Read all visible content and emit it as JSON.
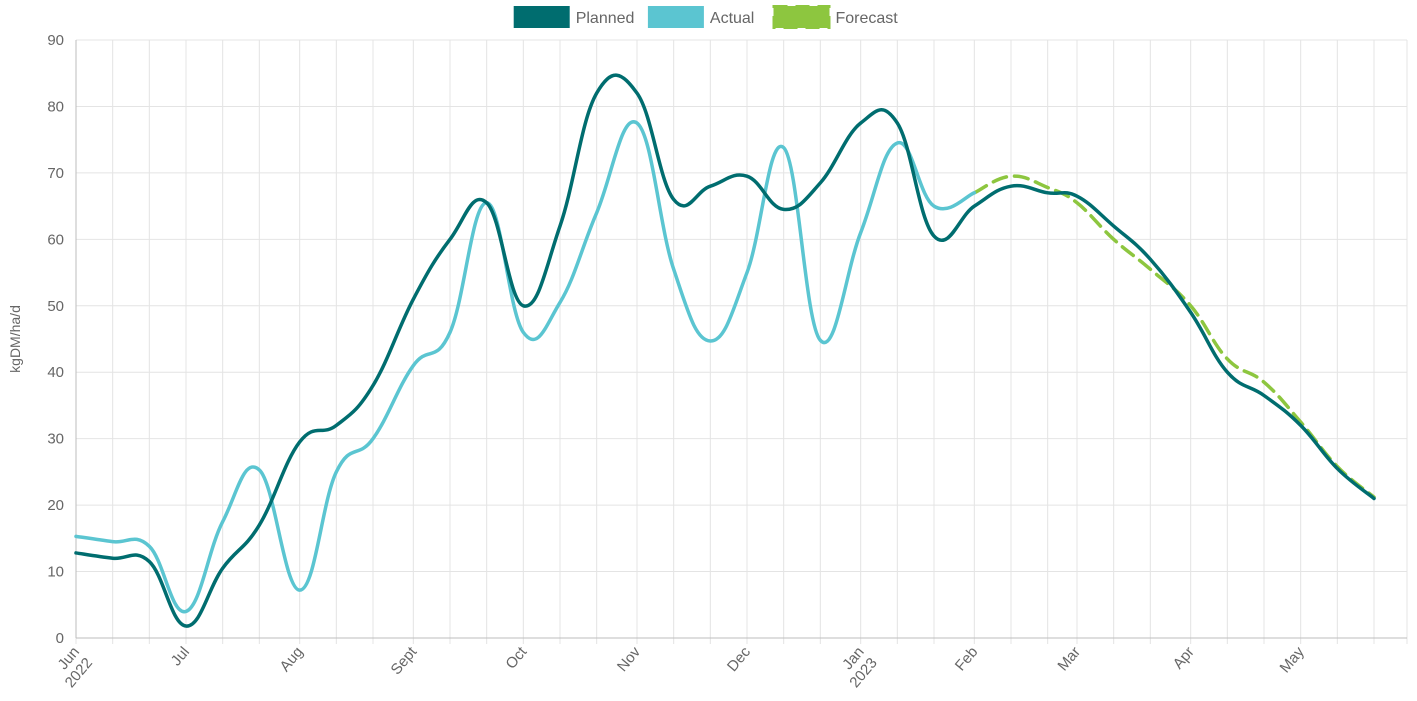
{
  "chart_data": {
    "type": "line",
    "ylabel": "kgDM/ha/d",
    "ylim": [
      0,
      90
    ],
    "yticks": [
      0,
      10,
      20,
      30,
      40,
      50,
      60,
      70,
      80,
      90
    ],
    "xlim": [
      "2022-06-01",
      "2023-05-30"
    ],
    "x_ticks": [
      {
        "date": "2022-06-01",
        "lines": [
          "Jun",
          "2022"
        ]
      },
      {
        "date": "2022-07-01",
        "lines": [
          "Jul"
        ]
      },
      {
        "date": "2022-08-01",
        "lines": [
          "Aug"
        ]
      },
      {
        "date": "2022-09-01",
        "lines": [
          "Sept"
        ]
      },
      {
        "date": "2022-10-01",
        "lines": [
          "Oct"
        ]
      },
      {
        "date": "2022-11-01",
        "lines": [
          "Nov"
        ]
      },
      {
        "date": "2022-12-01",
        "lines": [
          "Dec"
        ]
      },
      {
        "date": "2023-01-01",
        "lines": [
          "Jan",
          "2023"
        ]
      },
      {
        "date": "2023-02-01",
        "lines": [
          "Feb"
        ]
      },
      {
        "date": "2023-03-01",
        "lines": [
          "Mar"
        ]
      },
      {
        "date": "2023-04-01",
        "lines": [
          "Apr"
        ]
      },
      {
        "date": "2023-05-01",
        "lines": [
          "May"
        ]
      }
    ],
    "grid": true,
    "legend": {
      "position": "top"
    },
    "series": [
      {
        "name": "Planned",
        "color": "#006d6f",
        "dashed": false,
        "points": [
          {
            "x": "2022-06-01",
            "y": 12.8
          },
          {
            "x": "2022-06-11",
            "y": 12.0
          },
          {
            "x": "2022-06-21",
            "y": 11.5
          },
          {
            "x": "2022-07-01",
            "y": 1.8
          },
          {
            "x": "2022-07-11",
            "y": 10.5
          },
          {
            "x": "2022-07-21",
            "y": 17.0
          },
          {
            "x": "2022-08-01",
            "y": 29.5
          },
          {
            "x": "2022-08-11",
            "y": 32.0
          },
          {
            "x": "2022-08-21",
            "y": 38.0
          },
          {
            "x": "2022-09-01",
            "y": 51.0
          },
          {
            "x": "2022-09-11",
            "y": 60.0
          },
          {
            "x": "2022-09-21",
            "y": 65.5
          },
          {
            "x": "2022-10-01",
            "y": 50.0
          },
          {
            "x": "2022-10-11",
            "y": 62.0
          },
          {
            "x": "2022-10-21",
            "y": 82.0
          },
          {
            "x": "2022-11-01",
            "y": 82.0
          },
          {
            "x": "2022-11-11",
            "y": 66.0
          },
          {
            "x": "2022-11-21",
            "y": 68.0
          },
          {
            "x": "2022-12-01",
            "y": 69.5
          },
          {
            "x": "2022-12-11",
            "y": 64.5
          },
          {
            "x": "2022-12-21",
            "y": 68.5
          },
          {
            "x": "2023-01-01",
            "y": 77.5
          },
          {
            "x": "2023-01-11",
            "y": 77.5
          },
          {
            "x": "2023-01-21",
            "y": 60.5
          },
          {
            "x": "2023-02-01",
            "y": 65.0
          },
          {
            "x": "2023-02-11",
            "y": 68.0
          },
          {
            "x": "2023-02-21",
            "y": 67.0
          },
          {
            "x": "2023-03-01",
            "y": 66.5
          },
          {
            "x": "2023-03-11",
            "y": 62.0
          },
          {
            "x": "2023-03-21",
            "y": 57.0
          },
          {
            "x": "2023-04-01",
            "y": 49.0
          },
          {
            "x": "2023-04-11",
            "y": 40.0
          },
          {
            "x": "2023-04-21",
            "y": 36.5
          },
          {
            "x": "2023-05-01",
            "y": 32.0
          },
          {
            "x": "2023-05-11",
            "y": 25.5
          },
          {
            "x": "2023-05-21",
            "y": 21.0
          }
        ]
      },
      {
        "name": "Actual",
        "color": "#5bc5d1",
        "dashed": false,
        "points": [
          {
            "x": "2022-06-01",
            "y": 15.3
          },
          {
            "x": "2022-06-11",
            "y": 14.5
          },
          {
            "x": "2022-06-21",
            "y": 13.8
          },
          {
            "x": "2022-07-01",
            "y": 4.0
          },
          {
            "x": "2022-07-11",
            "y": 17.5
          },
          {
            "x": "2022-07-21",
            "y": 25.3
          },
          {
            "x": "2022-08-01",
            "y": 7.2
          },
          {
            "x": "2022-08-11",
            "y": 25.0
          },
          {
            "x": "2022-08-21",
            "y": 30.0
          },
          {
            "x": "2022-09-01",
            "y": 41.0
          },
          {
            "x": "2022-09-11",
            "y": 46.0
          },
          {
            "x": "2022-09-21",
            "y": 65.5
          },
          {
            "x": "2022-10-01",
            "y": 46.0
          },
          {
            "x": "2022-10-11",
            "y": 50.5
          },
          {
            "x": "2022-10-21",
            "y": 64.0
          },
          {
            "x": "2022-11-01",
            "y": 77.5
          },
          {
            "x": "2022-11-11",
            "y": 55.5
          },
          {
            "x": "2022-11-21",
            "y": 44.7
          },
          {
            "x": "2022-12-01",
            "y": 55.0
          },
          {
            "x": "2022-12-11",
            "y": 73.8
          },
          {
            "x": "2022-12-21",
            "y": 44.8
          },
          {
            "x": "2023-01-01",
            "y": 61.0
          },
          {
            "x": "2023-01-11",
            "y": 74.5
          },
          {
            "x": "2023-01-21",
            "y": 65.0
          },
          {
            "x": "2023-02-01",
            "y": 67.0
          }
        ]
      },
      {
        "name": "Forecast",
        "color": "#8dc63f",
        "dashed": true,
        "points": [
          {
            "x": "2023-02-01",
            "y": 67.0
          },
          {
            "x": "2023-02-11",
            "y": 69.5
          },
          {
            "x": "2023-02-21",
            "y": 67.8
          },
          {
            "x": "2023-03-01",
            "y": 65.5
          },
          {
            "x": "2023-03-11",
            "y": 60.0
          },
          {
            "x": "2023-03-21",
            "y": 55.5
          },
          {
            "x": "2023-04-01",
            "y": 50.0
          },
          {
            "x": "2023-04-11",
            "y": 42.0
          },
          {
            "x": "2023-04-21",
            "y": 38.5
          },
          {
            "x": "2023-05-01",
            "y": 32.5
          },
          {
            "x": "2023-05-11",
            "y": 25.8
          },
          {
            "x": "2023-05-21",
            "y": 21.2
          }
        ]
      }
    ]
  }
}
